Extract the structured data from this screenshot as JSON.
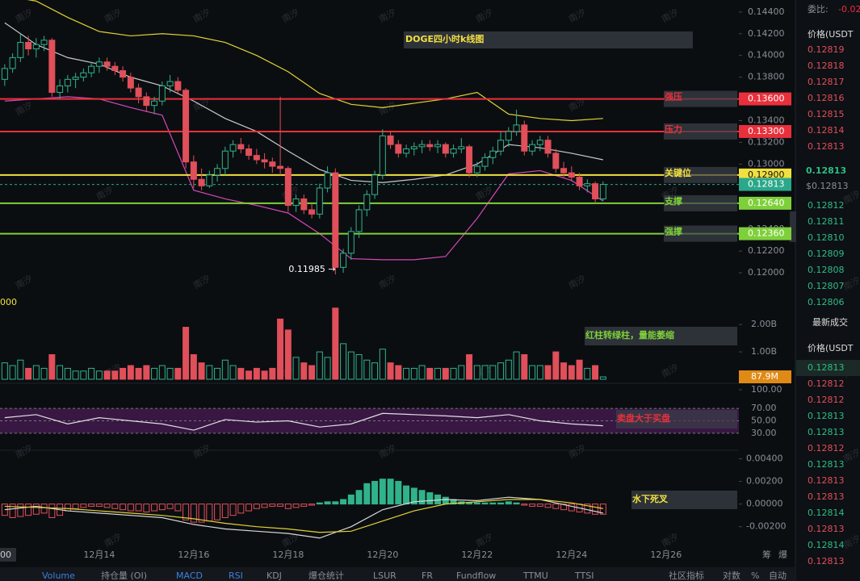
{
  "chart_data": {
    "type": "candlestick",
    "title": "DOGE四小时k线图",
    "watermark": "南汐",
    "up_color": "#31b38a",
    "down_color": "#e04f5a",
    "xlim": [
      -0.6,
      93.25
    ],
    "xticks": [
      {
        "value": 12,
        "label": "12月14"
      },
      {
        "value": 24,
        "label": "12月16"
      },
      {
        "value": 36,
        "label": "12月18"
      },
      {
        "value": 48,
        "label": "12月20"
      },
      {
        "value": 60,
        "label": "12月22"
      },
      {
        "value": 72,
        "label": "12月24"
      },
      {
        "value": 84,
        "label": "12月26"
      }
    ],
    "ylim": [
      0.118,
      0.1451
    ],
    "yticks": [
      {
        "value": 0.144,
        "label": "0.14400"
      },
      {
        "value": 0.142,
        "label": "0.14200"
      },
      {
        "value": 0.14,
        "label": "0.14000"
      },
      {
        "value": 0.138,
        "label": "0.13800"
      },
      {
        "value": 0.134,
        "label": "0.13400"
      },
      {
        "value": 0.132,
        "label": "0.13200"
      },
      {
        "value": 0.13,
        "label": "0.13000"
      },
      {
        "value": 0.124,
        "label": "0.12400"
      },
      {
        "value": 0.122,
        "label": "0.12200"
      },
      {
        "value": 0.12,
        "label": "0.12000"
      }
    ],
    "candles": [
      [
        0.1378,
        0.1392,
        0.1372,
        0.1388
      ],
      [
        0.1388,
        0.1402,
        0.1384,
        0.1398
      ],
      [
        0.1398,
        0.142,
        0.1394,
        0.1412
      ],
      [
        0.1412,
        0.1418,
        0.14,
        0.1406
      ],
      [
        0.1406,
        0.1416,
        0.1398,
        0.141
      ],
      [
        0.141,
        0.1418,
        0.1404,
        0.1414
      ],
      [
        0.1414,
        0.1416,
        0.1362,
        0.1366
      ],
      [
        0.1366,
        0.1378,
        0.136,
        0.1372
      ],
      [
        0.1372,
        0.1382,
        0.1366,
        0.1378
      ],
      [
        0.1378,
        0.1384,
        0.137,
        0.138
      ],
      [
        0.138,
        0.1388,
        0.1376,
        0.1384
      ],
      [
        0.1384,
        0.1394,
        0.138,
        0.139
      ],
      [
        0.139,
        0.1398,
        0.1384,
        0.1394
      ],
      [
        0.1394,
        0.1398,
        0.1386,
        0.139
      ],
      [
        0.139,
        0.1394,
        0.1382,
        0.1386
      ],
      [
        0.1386,
        0.139,
        0.1376,
        0.138
      ],
      [
        0.138,
        0.1384,
        0.1366,
        0.137
      ],
      [
        0.137,
        0.1374,
        0.1356,
        0.1362
      ],
      [
        0.1362,
        0.1366,
        0.1348,
        0.1354
      ],
      [
        0.1354,
        0.1362,
        0.1346,
        0.1358
      ],
      [
        0.1358,
        0.1376,
        0.1354,
        0.1372
      ],
      [
        0.1372,
        0.1382,
        0.1366,
        0.1376
      ],
      [
        0.1376,
        0.138,
        0.1364,
        0.1368
      ],
      [
        0.1368,
        0.137,
        0.1296,
        0.1302
      ],
      [
        0.1302,
        0.1308,
        0.1278,
        0.1286
      ],
      [
        0.1286,
        0.1296,
        0.1276,
        0.128
      ],
      [
        0.128,
        0.1294,
        0.1278,
        0.129
      ],
      [
        0.129,
        0.13,
        0.1284,
        0.1296
      ],
      [
        0.1296,
        0.1316,
        0.129,
        0.1312
      ],
      [
        0.1312,
        0.1322,
        0.1306,
        0.1318
      ],
      [
        0.1318,
        0.1324,
        0.131,
        0.1314
      ],
      [
        0.1314,
        0.1318,
        0.1304,
        0.1308
      ],
      [
        0.1308,
        0.1314,
        0.13,
        0.1304
      ],
      [
        0.1304,
        0.131,
        0.1296,
        0.1302
      ],
      [
        0.1302,
        0.1306,
        0.1292,
        0.1298
      ],
      [
        0.1298,
        0.1362,
        0.129,
        0.1296
      ],
      [
        0.1296,
        0.1298,
        0.1256,
        0.1262
      ],
      [
        0.1262,
        0.1272,
        0.1256,
        0.1268
      ],
      [
        0.1268,
        0.1272,
        0.1254,
        0.1258
      ],
      [
        0.1258,
        0.1264,
        0.125,
        0.1254
      ],
      [
        0.1254,
        0.1282,
        0.125,
        0.1278
      ],
      [
        0.1278,
        0.1298,
        0.1274,
        0.1292
      ],
      [
        0.1292,
        0.1296,
        0.11985,
        0.1205
      ],
      [
        0.1205,
        0.1222,
        0.12,
        0.1218
      ],
      [
        0.1218,
        0.1242,
        0.1212,
        0.1238
      ],
      [
        0.1238,
        0.1262,
        0.1232,
        0.1258
      ],
      [
        0.1258,
        0.1276,
        0.1252,
        0.1272
      ],
      [
        0.1272,
        0.1294,
        0.1268,
        0.129
      ],
      [
        0.129,
        0.1332,
        0.1286,
        0.1326
      ],
      [
        0.1326,
        0.133,
        0.1314,
        0.1318
      ],
      [
        0.1318,
        0.1322,
        0.1306,
        0.131
      ],
      [
        0.131,
        0.1318,
        0.1306,
        0.1314
      ],
      [
        0.1314,
        0.132,
        0.1308,
        0.1316
      ],
      [
        0.1316,
        0.1322,
        0.131,
        0.1318
      ],
      [
        0.1318,
        0.1322,
        0.1312,
        0.1316
      ],
      [
        0.1316,
        0.1322,
        0.131,
        0.1318
      ],
      [
        0.1318,
        0.132,
        0.1306,
        0.131
      ],
      [
        0.131,
        0.1318,
        0.1306,
        0.1314
      ],
      [
        0.1314,
        0.1324,
        0.131,
        0.1316
      ],
      [
        0.1316,
        0.1318,
        0.1288,
        0.1292
      ],
      [
        0.1292,
        0.1302,
        0.1288,
        0.1298
      ],
      [
        0.1298,
        0.131,
        0.1294,
        0.1306
      ],
      [
        0.1306,
        0.1316,
        0.13,
        0.1312
      ],
      [
        0.1312,
        0.133,
        0.1308,
        0.1322
      ],
      [
        0.1322,
        0.1334,
        0.1316,
        0.133
      ],
      [
        0.133,
        0.135,
        0.1326,
        0.1336
      ],
      [
        0.1336,
        0.134,
        0.1308,
        0.1312
      ],
      [
        0.1312,
        0.1322,
        0.1308,
        0.1318
      ],
      [
        0.1318,
        0.1326,
        0.1312,
        0.1322
      ],
      [
        0.1322,
        0.1326,
        0.1306,
        0.131
      ],
      [
        0.131,
        0.1314,
        0.1292,
        0.1296
      ],
      [
        0.1296,
        0.1302,
        0.1288,
        0.1292
      ],
      [
        0.1292,
        0.1298,
        0.1284,
        0.1288
      ],
      [
        0.1288,
        0.1292,
        0.1276,
        0.128
      ],
      [
        0.128,
        0.1286,
        0.1274,
        0.1282
      ],
      [
        0.1282,
        0.1284,
        0.1264,
        0.1268
      ],
      [
        0.1268,
        0.1284,
        0.1266,
        0.12813
      ]
    ],
    "low_annotation": "0.11985 →",
    "bands": {
      "x": [
        0,
        4,
        8,
        12,
        16,
        20,
        24,
        28,
        32,
        36,
        40,
        44,
        48,
        52,
        56,
        60,
        64,
        68,
        72,
        76
      ],
      "upper": [
        0.1455,
        0.145,
        0.1435,
        0.1422,
        0.1418,
        0.142,
        0.1418,
        0.1412,
        0.14,
        0.1385,
        0.1365,
        0.1355,
        0.1352,
        0.1356,
        0.136,
        0.1366,
        0.1346,
        0.1342,
        0.134,
        0.1342
      ],
      "mid": [
        0.143,
        0.141,
        0.1398,
        0.1392,
        0.138,
        0.1372,
        0.1358,
        0.1342,
        0.133,
        0.1312,
        0.1295,
        0.1285,
        0.1283,
        0.1286,
        0.129,
        0.13,
        0.1318,
        0.1315,
        0.131,
        0.1304
      ],
      "lower": [
        0.1358,
        0.136,
        0.1362,
        0.136,
        0.1352,
        0.1345,
        0.1276,
        0.1268,
        0.1262,
        0.1255,
        0.1236,
        0.1213,
        0.1212,
        0.1212,
        0.1215,
        0.125,
        0.1291,
        0.1294,
        0.1285,
        0.1266
      ]
    },
    "levels": [
      {
        "name": "强压",
        "value": 0.136,
        "label": "0.13600",
        "color": "#e8303c"
      },
      {
        "name": "压力",
        "value": 0.133,
        "label": "0.13300",
        "color": "#e8303c"
      },
      {
        "name": "关键位",
        "value": 0.129,
        "label": "0.12900",
        "color": "#f0e040"
      },
      {
        "name": "支撑",
        "value": 0.1264,
        "label": "0.12640",
        "color": "#7ed03a"
      },
      {
        "name": "强撑",
        "value": 0.1236,
        "label": "0.12360",
        "color": "#7ed03a"
      }
    ],
    "last_price": {
      "value": 0.12813,
      "label": "0.12813",
      "color": "#2aa88a"
    },
    "volume": {
      "ylim": [
        0,
        2.8
      ],
      "yticks": [
        {
          "value": 2,
          "label": "2.00B"
        },
        {
          "value": 1,
          "label": "1.00B"
        }
      ],
      "values": [
        0.6,
        0.5,
        0.7,
        0.4,
        0.5,
        0.4,
        0.9,
        0.5,
        0.4,
        0.3,
        0.3,
        0.4,
        0.3,
        0.3,
        0.3,
        0.4,
        0.5,
        0.4,
        0.5,
        0.4,
        0.5,
        0.4,
        0.4,
        1.9,
        0.9,
        0.6,
        0.5,
        0.4,
        0.7,
        0.5,
        0.4,
        0.3,
        0.4,
        0.3,
        0.4,
        2.2,
        1.8,
        0.8,
        0.6,
        0.5,
        1.0,
        0.8,
        2.6,
        1.3,
        1.0,
        0.9,
        0.7,
        0.6,
        1.1,
        0.6,
        0.5,
        0.4,
        0.4,
        0.5,
        0.4,
        0.4,
        0.4,
        0.4,
        0.5,
        0.9,
        0.5,
        0.5,
        0.5,
        0.6,
        0.7,
        1.0,
        0.9,
        0.5,
        0.5,
        0.5,
        1.0,
        0.6,
        0.5,
        0.7,
        0.4,
        0.5,
        0.0879
      ],
      "last_label": "87.9M",
      "cut_label": "000",
      "annotation": "红柱转绿柱，量能萎缩"
    },
    "rsi": {
      "ylim": [
        0,
        100
      ],
      "yticks": [
        {
          "value": 100,
          "label": "100.00"
        },
        {
          "value": 70,
          "label": "70.00"
        },
        {
          "value": 50,
          "label": "50.00"
        },
        {
          "value": 30,
          "label": "30.00"
        }
      ],
      "values": [
        55,
        60,
        45,
        55,
        50,
        45,
        35,
        52,
        48,
        50,
        40,
        45,
        62,
        60,
        58,
        55,
        60,
        50,
        45,
        42
      ],
      "annotation": "卖盘大于买盘"
    },
    "macd": {
      "ylim": [
        -0.0038,
        0.0046
      ],
      "yticks": [
        {
          "value": 0.004,
          "label": "0.00400"
        },
        {
          "value": 0.002,
          "label": "0.00200"
        },
        {
          "value": 0,
          "label": "0.00000"
        },
        {
          "value": -0.002,
          "label": "-0.00200"
        }
      ],
      "histogram": [
        -0.001,
        -0.0012,
        -0.0011,
        -0.001,
        -0.0009,
        -0.0008,
        -0.0012,
        -0.001,
        -0.0006,
        -0.0004,
        -0.0003,
        -0.0002,
        -0.0002,
        -0.0003,
        -0.0004,
        -0.0005,
        -0.0006,
        -0.0006,
        -0.0007,
        -0.0006,
        -0.0005,
        -0.0004,
        -0.0006,
        -0.0014,
        -0.0016,
        -0.0016,
        -0.0015,
        -0.0014,
        -0.0012,
        -0.001,
        -0.0008,
        -0.0006,
        -0.0004,
        -0.0003,
        -0.0002,
        -0.0002,
        -0.0004,
        -0.0003,
        -0.0002,
        -0.0001,
        0.0001,
        0.0002,
        0.0002,
        0.0004,
        0.0008,
        0.0012,
        0.0018,
        0.002,
        0.0022,
        0.0022,
        0.002,
        0.0016,
        0.0014,
        0.0012,
        0.001,
        0.0008,
        0.0006,
        0.0004,
        0.0002,
        0.0001,
        0.0001,
        0.0001,
        0.0001,
        0.0001,
        0.0002,
        0.0001,
        -0.0001,
        -0.0002,
        -0.0002,
        -0.0003,
        -0.0004,
        -0.0005,
        -0.0006,
        -0.0007,
        -0.0008,
        -0.0009,
        -0.0009
      ],
      "dif": [
        -0.0005,
        -0.0002,
        -0.0006,
        -0.0008,
        -0.001,
        -0.0012,
        -0.0018,
        -0.0022,
        -0.0024,
        -0.0026,
        -0.003,
        -0.002,
        -0.0005,
        0.0002,
        0.0004,
        0.0003,
        0.0006,
        0.0004,
        -0.0002,
        -0.0008
      ],
      "dea": [
        -0.0002,
        -0.0003,
        -0.0004,
        -0.0006,
        -0.0008,
        -0.001,
        -0.0013,
        -0.0017,
        -0.002,
        -0.0022,
        -0.0025,
        -0.0024,
        -0.0015,
        -0.0006,
        0.0,
        0.0002,
        0.0004,
        0.0004,
        0.0001,
        -0.0004
      ],
      "annotation": "水下死叉"
    },
    "axis_cut_label": "00",
    "corner_labels": [
      "筹",
      "爆"
    ],
    "tabs": [
      {
        "label": "Volume",
        "active": true
      },
      {
        "label": "持仓量 (OI)",
        "active": false
      },
      {
        "label": "MACD",
        "active": true
      },
      {
        "label": "RSI",
        "active": true
      },
      {
        "label": "KDJ",
        "active": false
      },
      {
        "label": "爆仓统计",
        "active": false
      },
      {
        "label": "LSUR",
        "active": false
      },
      {
        "label": "FR",
        "active": false
      },
      {
        "label": "Fundflow",
        "active": false
      },
      {
        "label": "TTMU",
        "active": false
      },
      {
        "label": "TTSI",
        "active": false
      }
    ],
    "tab_tools": [
      "社区指标",
      "对数",
      "%",
      "自动"
    ]
  },
  "orderbook": {
    "ratio_label": "委比:",
    "ratio": "-0.02",
    "header": "价格(USDT",
    "asks": [
      "0.12819",
      "0.12818",
      "0.12817",
      "0.12816",
      "0.12815",
      "0.12814",
      "0.12813"
    ],
    "price": "0.12813",
    "price_usd": "$0.12813",
    "bids": [
      "0.12812",
      "0.12811",
      "0.12810",
      "0.12809",
      "0.12808",
      "0.12807",
      "0.12806"
    ],
    "trades_title": "最新成交",
    "trades_header": "价格(USDT",
    "trades": [
      {
        "price": "0.12813",
        "side": "buy"
      },
      {
        "price": "0.12812",
        "side": "sell"
      },
      {
        "price": "0.12812",
        "side": "sell"
      },
      {
        "price": "0.12813",
        "side": "buy"
      },
      {
        "price": "0.12813",
        "side": "buy"
      },
      {
        "price": "0.12812",
        "side": "sell"
      },
      {
        "price": "0.12813",
        "side": "buy"
      },
      {
        "price": "0.12813",
        "side": "sell"
      },
      {
        "price": "0.12813",
        "side": "sell"
      },
      {
        "price": "0.12814",
        "side": "buy"
      },
      {
        "price": "0.12813",
        "side": "sell"
      },
      {
        "price": "0.12814",
        "side": "buy"
      },
      {
        "price": "0.12813",
        "side": "sell"
      }
    ]
  }
}
